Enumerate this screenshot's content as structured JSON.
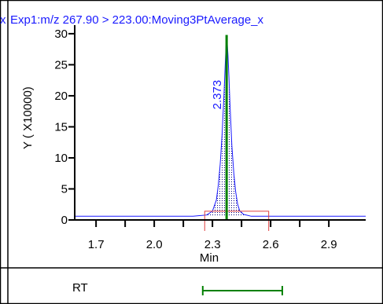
{
  "chart_data": {
    "type": "line",
    "title": "Exp1:m/z 267.90 > 223.00:Moving3PtAverage_x",
    "left_fragment": "x",
    "xlabel": "Min",
    "ylabel": "Y ( X10000)",
    "xlim": [
      1.59,
      3.09
    ],
    "ylim": [
      0,
      31
    ],
    "x_ticks": [
      1.7,
      2.0,
      2.3,
      2.6,
      2.9
    ],
    "x_tick_labels": [
      "1.7",
      "2.0",
      "2.3",
      "2.6",
      "2.9"
    ],
    "y_ticks": [
      0,
      5,
      10,
      15,
      20,
      25,
      30
    ],
    "y_tick_labels": [
      "0",
      "5",
      "10",
      "15",
      "20",
      "25",
      "30"
    ],
    "baseline": 0.6,
    "series": [
      {
        "x": [
          1.59,
          2.2,
          2.27,
          2.3,
          2.32,
          2.33,
          2.34,
          2.35,
          2.36,
          2.365,
          2.37,
          2.373,
          2.376,
          2.38,
          2.385,
          2.39,
          2.4,
          2.41,
          2.42,
          2.43,
          2.44,
          2.46,
          2.5,
          3.09
        ],
        "y": [
          0.6,
          0.6,
          0.8,
          1.4,
          3.2,
          5.5,
          9.0,
          14.0,
          20.5,
          24.5,
          28.0,
          29.8,
          28.5,
          26.5,
          23.0,
          19.0,
          12.0,
          7.5,
          4.5,
          2.5,
          1.5,
          0.9,
          0.6,
          0.6
        ]
      }
    ],
    "peak": {
      "rt": 2.373,
      "label": "2.373"
    },
    "integration": {
      "start": 2.26,
      "end": 2.59
    },
    "rt_window": {
      "label": "RT",
      "start": 2.25,
      "end": 2.66
    }
  },
  "colors": {
    "trace": "#1a1aff",
    "fill_dots": "#000080",
    "peak_marker": "#008000",
    "integration": "#e04040",
    "rt_window": "#008000",
    "frame": "#000000"
  }
}
